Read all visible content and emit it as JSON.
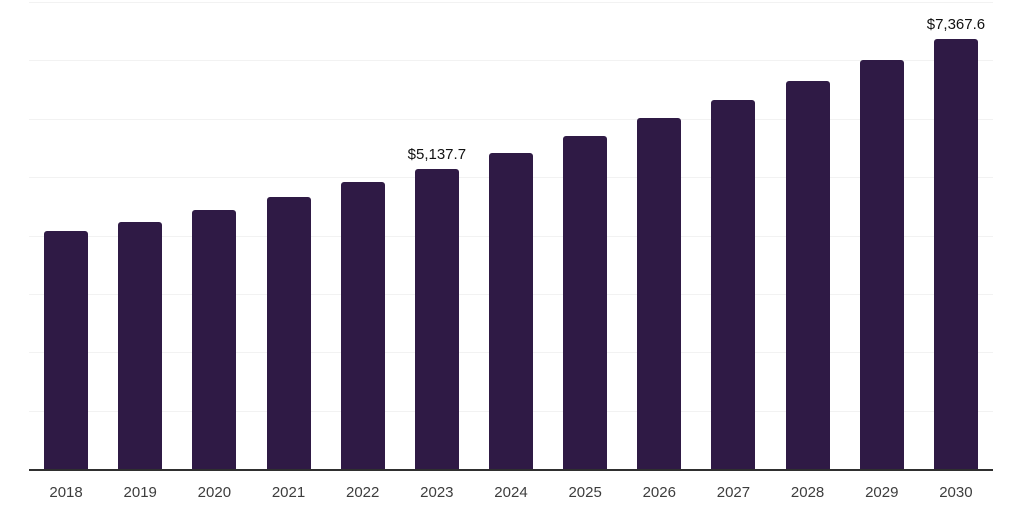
{
  "chart_data": {
    "type": "bar",
    "title": "",
    "xlabel": "",
    "ylabel": "",
    "categories": [
      "2018",
      "2019",
      "2020",
      "2021",
      "2022",
      "2023",
      "2024",
      "2025",
      "2026",
      "2027",
      "2028",
      "2029",
      "2030"
    ],
    "values": [
      4070,
      4240,
      4440,
      4660,
      4910,
      5137.7,
      5415,
      5705,
      6015,
      6330,
      6645,
      7010,
      7367.6
    ],
    "value_labels": [
      {
        "category": "2023",
        "text": "$5,137.7"
      },
      {
        "category": "2030",
        "text": "$7,367.6"
      }
    ],
    "ylim": [
      0,
      8000
    ],
    "gridline_step": 1000,
    "grid": "horizontal",
    "legend": "none",
    "y_tick_labels_shown": false,
    "colors": {
      "bar": "#2f1a45",
      "gridline": "#f2f2f2",
      "axis_line": "#2f2f2f",
      "tick_label": "#3d3d3d",
      "value_label": "#111111",
      "background": "#ffffff"
    }
  }
}
